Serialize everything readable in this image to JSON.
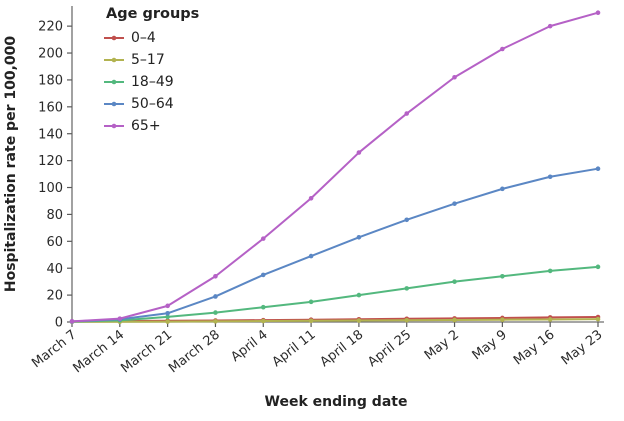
{
  "chart_data": {
    "type": "line",
    "title": "",
    "legend_title": "Age groups",
    "legend_position": "top-left-inside",
    "xlabel": "Week ending date",
    "ylabel": "Hospitalization rate per 100,000",
    "grid": false,
    "ylim": [
      0,
      232
    ],
    "ytick_step": 20,
    "yticks": [
      0,
      20,
      40,
      60,
      80,
      100,
      120,
      140,
      160,
      180,
      200,
      220
    ],
    "categories": [
      "March 7",
      "March 14",
      "March 21",
      "March 28",
      "April 4",
      "April 11",
      "April 18",
      "April 25",
      "May 2",
      "May 9",
      "May 16",
      "May 23"
    ],
    "series": [
      {
        "name": "0–4",
        "color": "#c0504d",
        "values": [
          0.5,
          0.7,
          0.9,
          1.1,
          1.4,
          1.7,
          2.0,
          2.4,
          2.7,
          3.0,
          3.4,
          3.7
        ]
      },
      {
        "name": "5–17",
        "color": "#b2b350",
        "values": [
          0.1,
          0.2,
          0.3,
          0.5,
          0.7,
          0.9,
          1.1,
          1.3,
          1.5,
          1.7,
          1.9,
          2.1
        ]
      },
      {
        "name": "18–49",
        "color": "#53b87e",
        "values": [
          0.3,
          1.2,
          3.8,
          7,
          11,
          15,
          20,
          25,
          30,
          34,
          38,
          41
        ]
      },
      {
        "name": "50–64",
        "color": "#5b87c4",
        "values": [
          0.4,
          2.0,
          6.5,
          19,
          35,
          49,
          63,
          76,
          88,
          99,
          108,
          114
        ]
      },
      {
        "name": "65+",
        "color": "#b561c6",
        "values": [
          0.5,
          2.5,
          12,
          34,
          62,
          92,
          126,
          155,
          182,
          203,
          220,
          230
        ]
      }
    ]
  },
  "colors": {
    "axis_line": "#6f6f6f",
    "tick_mark": "#5a5a5a",
    "text": "#222222",
    "background": "#ffffff"
  }
}
